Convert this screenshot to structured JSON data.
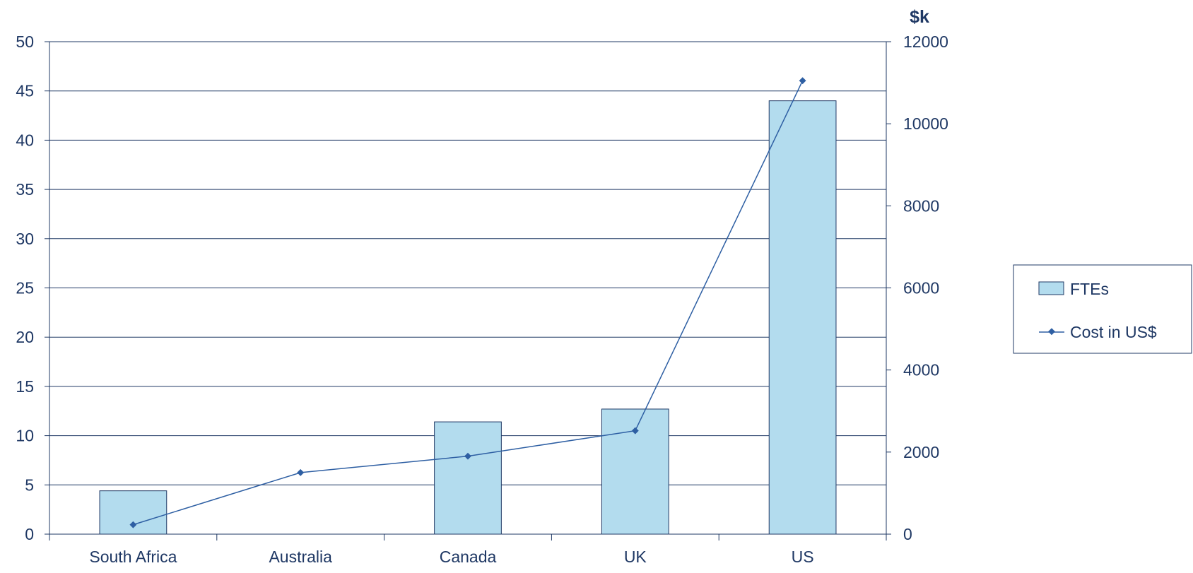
{
  "chart_data": {
    "type": "bar",
    "categories": [
      "South Africa",
      "Australia",
      "Canada",
      "UK",
      "US"
    ],
    "series": [
      {
        "name": "FTEs",
        "type": "bar",
        "axis": "left",
        "values": [
          4.4,
          0,
          11.4,
          12.7,
          44.0
        ],
        "color": "#b3dcee",
        "stroke": "#1f3864"
      },
      {
        "name": "Cost in US$",
        "type": "line",
        "axis": "right",
        "values": [
          230,
          1500,
          1900,
          2520,
          11050
        ],
        "color": "#2e5fa3"
      }
    ],
    "y_left": {
      "ylim": [
        0,
        50
      ],
      "ticks": [
        "0",
        "5",
        "10",
        "15",
        "20",
        "25",
        "30",
        "35",
        "40",
        "45",
        "50"
      ]
    },
    "y_right": {
      "label": "$k",
      "ylim": [
        0,
        12000
      ],
      "ticks": [
        "0",
        "2000",
        "4000",
        "6000",
        "8000",
        "10000",
        "12000"
      ]
    },
    "grid": true,
    "legend_position": "right",
    "colors": {
      "text": "#1f3864",
      "axis": "#1f3864",
      "grid": "#1f3864"
    }
  }
}
